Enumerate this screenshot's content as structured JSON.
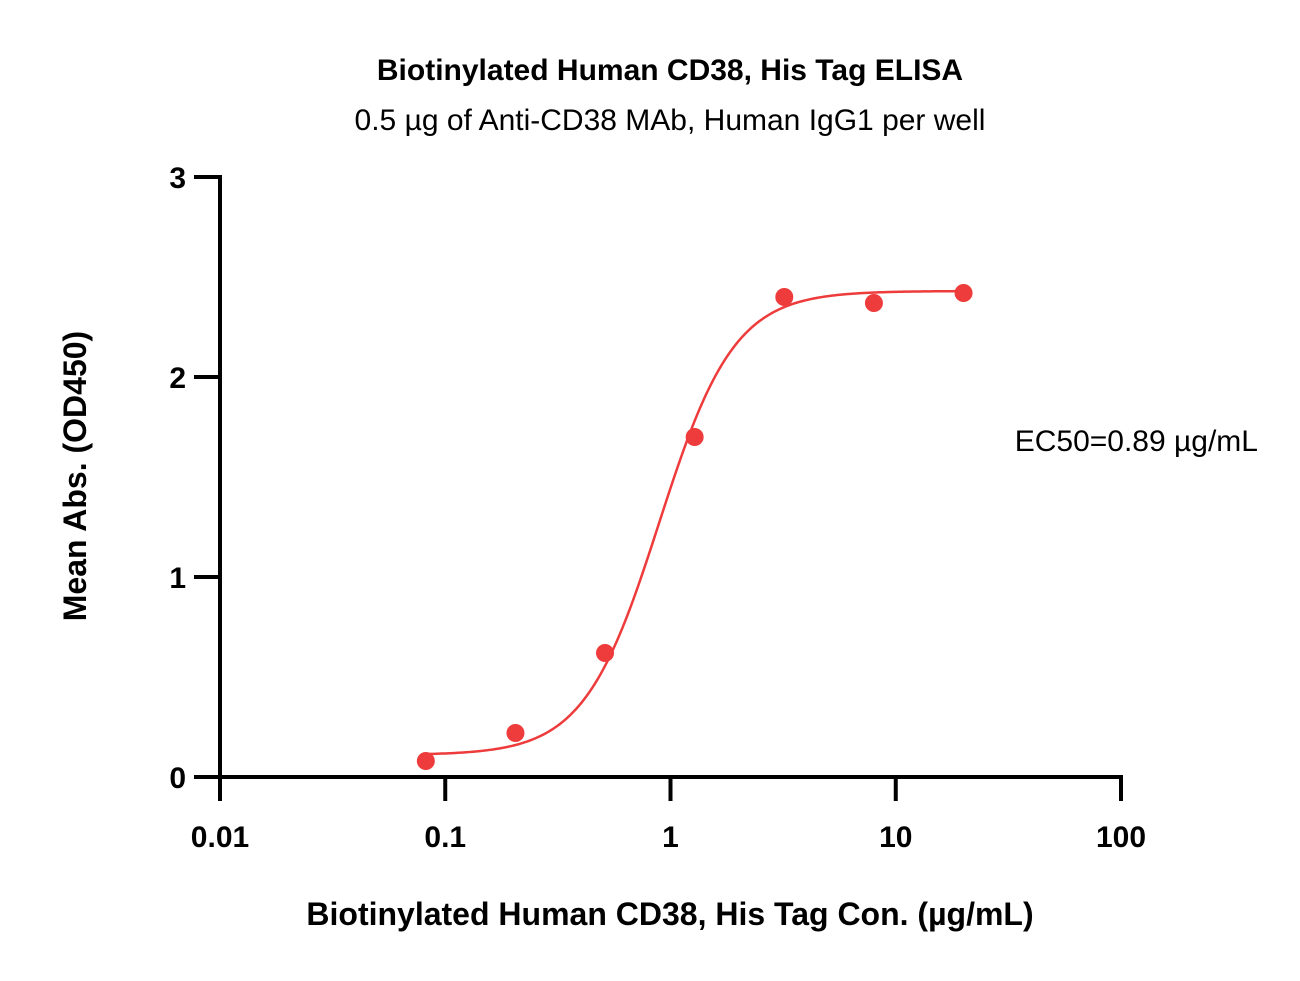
{
  "chart_data": {
    "type": "scatter",
    "title": "Biotinylated Human CD38, His Tag ELISA",
    "subtitle": "0.5 µg of Anti-CD38 MAb, Human IgG1 per well",
    "xlabel": "Biotinylated Human CD38, His Tag Con. (µg/mL)",
    "ylabel": "Mean Abs. (OD450)",
    "x_scale": "log",
    "xlim": [
      0.01,
      100
    ],
    "ylim": [
      0,
      3
    ],
    "x_ticks": [
      0.01,
      0.1,
      1,
      10,
      100
    ],
    "x_tick_labels": [
      "0.01",
      "0.1",
      "1",
      "10",
      "100"
    ],
    "y_ticks": [
      0,
      1,
      2,
      3
    ],
    "y_tick_labels": [
      "0",
      "1",
      "2",
      "3"
    ],
    "grid": false,
    "series": [
      {
        "points": [
          {
            "x": 0.082,
            "y": 0.08
          },
          {
            "x": 0.205,
            "y": 0.22
          },
          {
            "x": 0.512,
            "y": 0.62
          },
          {
            "x": 1.28,
            "y": 1.7
          },
          {
            "x": 3.2,
            "y": 2.4
          },
          {
            "x": 8.0,
            "y": 2.37
          },
          {
            "x": 20.0,
            "y": 2.42
          }
        ],
        "fit": {
          "model": "4PL",
          "bottom": 0.11,
          "top": 2.43,
          "ec50": 0.89,
          "hill": 2.6
        },
        "color": "#ee3b3b"
      }
    ],
    "annotations": [
      {
        "text": "EC50=0.89 µg/mL"
      }
    ]
  }
}
